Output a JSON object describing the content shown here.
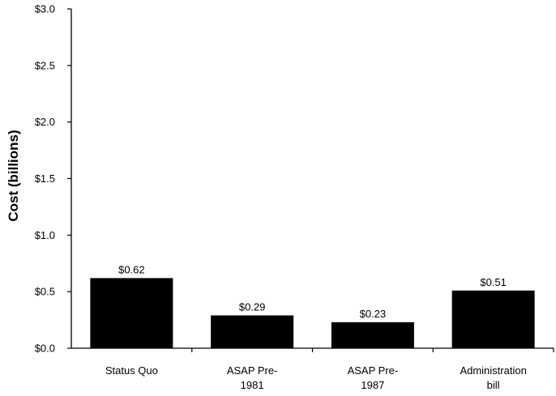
{
  "chart_data": {
    "type": "bar",
    "categories": [
      "Status Quo",
      "ASAP Pre-1981",
      "ASAP Pre-1987",
      "Administration bill"
    ],
    "category_lines": [
      [
        "Status Quo"
      ],
      [
        "ASAP Pre-",
        "1981"
      ],
      [
        "ASAP Pre-",
        "1987"
      ],
      [
        "Administration",
        "bill"
      ]
    ],
    "values": [
      0.62,
      0.29,
      0.23,
      0.51
    ],
    "value_labels": [
      "$0.62",
      "$0.29",
      "$0.23",
      "$0.51"
    ],
    "ylabel": "Cost (billions)",
    "xlabel": "",
    "title": "",
    "ylim": [
      0,
      3.0
    ],
    "yticks": [
      0,
      0.5,
      1.0,
      1.5,
      2.0,
      2.5,
      3.0
    ],
    "ytick_labels": [
      "$0.0",
      "$0.5",
      "$1.0",
      "$1.5",
      "$2.0",
      "$2.5",
      "$3.0"
    ],
    "grid": false,
    "bar_color": "#000000"
  }
}
